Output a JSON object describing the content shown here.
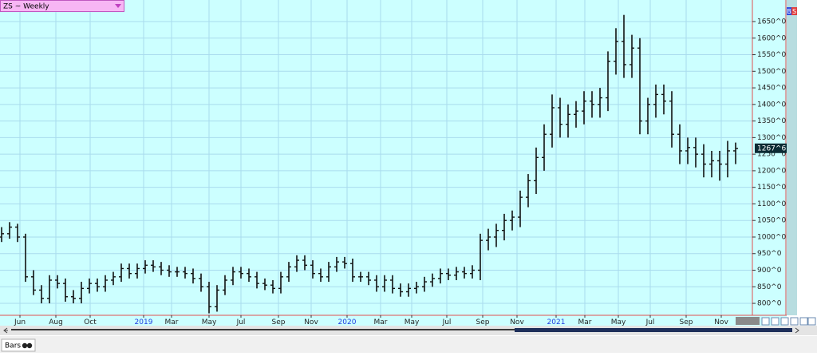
{
  "chart_data": {
    "type": "ohlc",
    "title": "ZS ~ Weekly",
    "color": "#111111",
    "grid": true,
    "open": [
      1000,
      1010,
      1030,
      1000,
      880,
      840,
      815,
      870,
      860,
      820,
      815,
      845,
      860,
      850,
      870,
      880,
      905,
      890,
      905,
      915,
      910,
      900,
      895,
      895,
      890,
      875,
      850,
      790,
      840,
      870,
      895,
      890,
      880,
      860,
      855,
      845,
      880,
      910,
      930,
      915,
      890,
      880,
      910,
      925,
      920,
      880,
      880,
      870,
      850,
      870,
      845,
      835,
      845,
      850,
      865,
      875,
      890,
      885,
      895,
      890,
      900,
      990,
      1000,
      1020,
      1050,
      1060,
      1120,
      1170,
      1240,
      1310,
      1390,
      1340,
      1370,
      1380,
      1410,
      1400,
      1420,
      1530,
      1590,
      1520,
      1570,
      1350,
      1400,
      1430,
      1410,
      1310,
      1260,
      1270,
      1250,
      1220,
      1230,
      1220,
      1260
    ],
    "high": [
      1030,
      1045,
      1040,
      1010,
      900,
      855,
      885,
      885,
      875,
      840,
      865,
      875,
      875,
      885,
      895,
      920,
      920,
      920,
      930,
      930,
      925,
      915,
      910,
      910,
      905,
      890,
      865,
      855,
      885,
      910,
      910,
      905,
      895,
      875,
      870,
      895,
      925,
      945,
      945,
      930,
      905,
      925,
      940,
      940,
      935,
      895,
      895,
      885,
      885,
      885,
      860,
      860,
      865,
      880,
      890,
      905,
      905,
      910,
      910,
      915,
      1010,
      1025,
      1040,
      1070,
      1080,
      1140,
      1190,
      1270,
      1340,
      1430,
      1420,
      1400,
      1410,
      1440,
      1440,
      1450,
      1560,
      1630,
      1670,
      1610,
      1600,
      1420,
      1460,
      1460,
      1440,
      1340,
      1300,
      1300,
      1280,
      1260,
      1260,
      1290,
      1285
    ],
    "low": [
      985,
      995,
      985,
      865,
      825,
      800,
      800,
      845,
      805,
      800,
      800,
      830,
      835,
      835,
      855,
      865,
      875,
      875,
      890,
      895,
      885,
      880,
      880,
      875,
      860,
      835,
      770,
      775,
      825,
      855,
      875,
      865,
      845,
      840,
      830,
      830,
      865,
      895,
      900,
      875,
      865,
      865,
      895,
      905,
      865,
      865,
      855,
      835,
      835,
      830,
      820,
      820,
      830,
      835,
      850,
      860,
      870,
      870,
      875,
      875,
      870,
      960,
      970,
      990,
      1020,
      1030,
      1090,
      1130,
      1200,
      1270,
      1300,
      1300,
      1330,
      1340,
      1360,
      1360,
      1380,
      1490,
      1480,
      1480,
      1310,
      1310,
      1360,
      1370,
      1270,
      1220,
      1220,
      1210,
      1180,
      1180,
      1170,
      1180,
      1220
    ],
    "close": [
      1010,
      1030,
      1000,
      880,
      840,
      815,
      870,
      860,
      820,
      815,
      845,
      860,
      850,
      870,
      880,
      905,
      890,
      905,
      915,
      910,
      900,
      895,
      895,
      890,
      875,
      850,
      790,
      840,
      870,
      895,
      890,
      880,
      860,
      855,
      845,
      880,
      910,
      930,
      915,
      890,
      880,
      910,
      925,
      920,
      880,
      880,
      870,
      850,
      870,
      845,
      835,
      845,
      850,
      865,
      875,
      890,
      885,
      895,
      890,
      900,
      990,
      1000,
      1020,
      1050,
      1060,
      1120,
      1170,
      1240,
      1310,
      1390,
      1340,
      1370,
      1380,
      1410,
      1400,
      1420,
      1530,
      1590,
      1520,
      1570,
      1350,
      1400,
      1430,
      1410,
      1310,
      1260,
      1270,
      1250,
      1220,
      1230,
      1220,
      1260,
      1267
    ],
    "last_price": {
      "value": 1267.75,
      "label": "1267^6"
    },
    "ylim": [
      764,
      1715
    ],
    "yticks": [
      {
        "value": 800,
        "label": "800^0"
      },
      {
        "value": 850,
        "label": "850^0"
      },
      {
        "value": 900,
        "label": "900^0"
      },
      {
        "value": 950,
        "label": "950^0"
      },
      {
        "value": 1000,
        "label": "1000^0"
      },
      {
        "value": 1050,
        "label": "1050^0"
      },
      {
        "value": 1100,
        "label": "1100^0"
      },
      {
        "value": 1150,
        "label": "1150^0"
      },
      {
        "value": 1200,
        "label": "1200^0"
      },
      {
        "value": 1250,
        "label": "1250^0"
      },
      {
        "value": 1300,
        "label": "1300^0"
      },
      {
        "value": 1350,
        "label": "1350^0"
      },
      {
        "value": 1400,
        "label": "1400^0"
      },
      {
        "value": 1450,
        "label": "1450^0"
      },
      {
        "value": 1500,
        "label": "1500^0"
      },
      {
        "value": 1550,
        "label": "1550^0"
      },
      {
        "value": 1600,
        "label": "1600^0"
      },
      {
        "value": 1650,
        "label": "1650^0"
      }
    ],
    "xlim": [
      -0.2,
      94.1
    ],
    "xticks": [
      {
        "value": 2.3,
        "label": "Jun"
      },
      {
        "value": 6.8,
        "label": "Aug"
      },
      {
        "value": 11.1,
        "label": "Oct"
      },
      {
        "value": 17.8,
        "label": "2019",
        "color": "#1f3fe0"
      },
      {
        "value": 21.3,
        "label": "Mar"
      },
      {
        "value": 26,
        "label": "May"
      },
      {
        "value": 30,
        "label": "Jul"
      },
      {
        "value": 34.7,
        "label": "Sep"
      },
      {
        "value": 38.8,
        "label": "Nov"
      },
      {
        "value": 43.3,
        "label": "2020",
        "color": "#1f3fe0"
      },
      {
        "value": 47.5,
        "label": "Mar"
      },
      {
        "value": 51.4,
        "label": "May"
      },
      {
        "value": 55.8,
        "label": "Jul"
      },
      {
        "value": 60.3,
        "label": "Sep"
      },
      {
        "value": 64.6,
        "label": "Nov"
      },
      {
        "value": 69.5,
        "label": "2021",
        "color": "#1f3fe0"
      },
      {
        "value": 73.1,
        "label": "Mar"
      },
      {
        "value": 77.3,
        "label": "May"
      },
      {
        "value": 81.3,
        "label": "Jul"
      },
      {
        "value": 85.8,
        "label": "Sep"
      },
      {
        "value": 90.2,
        "label": "Nov"
      }
    ]
  },
  "ui": {
    "buy_button": "B",
    "sell_button": "S",
    "tab": "Bars"
  }
}
